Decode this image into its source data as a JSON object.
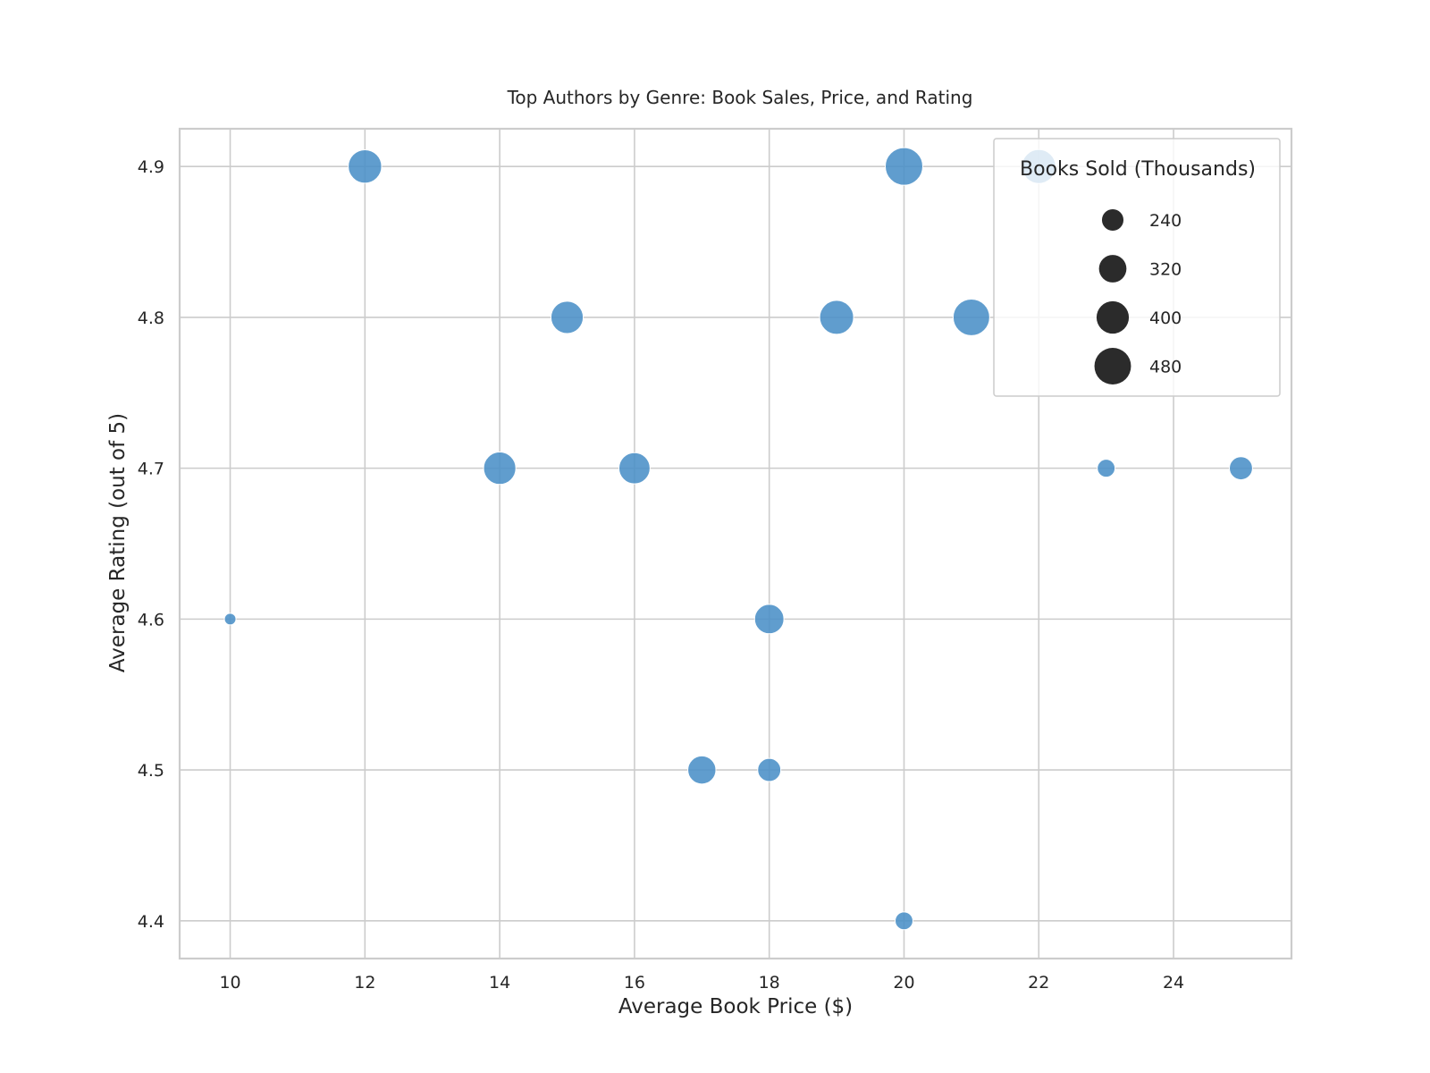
{
  "chart_data": {
    "type": "scatter",
    "title": "Top Authors by Genre: Book Sales, Price, and Rating",
    "xlabel": "Average Book Price ($)",
    "ylabel": "Average Rating (out of 5)",
    "xlim": [
      9.25,
      25.75
    ],
    "ylim": [
      4.375,
      4.925
    ],
    "xticks": [
      10,
      12,
      14,
      16,
      18,
      20,
      22,
      24
    ],
    "yticks": [
      4.4,
      4.5,
      4.6,
      4.7,
      4.8,
      4.9
    ],
    "xtick_labels": [
      "10",
      "12",
      "14",
      "16",
      "18",
      "20",
      "22",
      "24"
    ],
    "ytick_labels": [
      "4.4",
      "4.5",
      "4.6",
      "4.7",
      "4.8",
      "4.9"
    ],
    "grid": true,
    "point_color": "#4a8fc7",
    "size_range": {
      "min_value": 150,
      "max_value": 500
    },
    "points": [
      {
        "x": 10,
        "y": 4.6,
        "size": 150
      },
      {
        "x": 12,
        "y": 4.9,
        "size": 420
      },
      {
        "x": 14,
        "y": 4.7,
        "size": 400
      },
      {
        "x": 15,
        "y": 4.8,
        "size": 400
      },
      {
        "x": 16,
        "y": 4.7,
        "size": 380
      },
      {
        "x": 17,
        "y": 4.5,
        "size": 330
      },
      {
        "x": 18,
        "y": 4.6,
        "size": 350
      },
      {
        "x": 18,
        "y": 4.5,
        "size": 260
      },
      {
        "x": 19,
        "y": 4.8,
        "size": 430
      },
      {
        "x": 20,
        "y": 4.9,
        "size": 500
      },
      {
        "x": 20,
        "y": 4.4,
        "size": 200
      },
      {
        "x": 21,
        "y": 4.8,
        "size": 480
      },
      {
        "x": 22,
        "y": 4.9,
        "size": 430
      },
      {
        "x": 23,
        "y": 4.7,
        "size": 200
      },
      {
        "x": 25,
        "y": 4.7,
        "size": 260
      }
    ],
    "legend": {
      "title": "Books Sold (Thousands)",
      "placement": "top-right",
      "marker_color": "#2b2b2b",
      "entries": [
        {
          "label": "240",
          "size": 240
        },
        {
          "label": "320",
          "size": 320
        },
        {
          "label": "400",
          "size": 400
        },
        {
          "label": "480",
          "size": 480
        }
      ]
    }
  }
}
